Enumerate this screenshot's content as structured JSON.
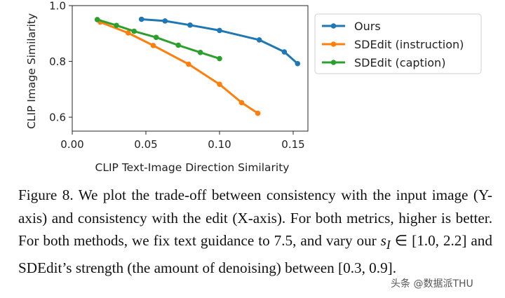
{
  "chart_data": {
    "type": "line",
    "xlabel": "CLIP Text-Image Direction Similarity",
    "ylabel": "CLIP Image Similarity",
    "xlim": [
      0.0,
      0.16
    ],
    "ylim": [
      0.55,
      1.0
    ],
    "xticks": [
      "0.00",
      "0.05",
      "0.10",
      "0.15"
    ],
    "xtick_values": [
      0.0,
      0.05,
      0.1,
      0.15
    ],
    "yticks": [
      "0.6",
      "0.8",
      "1.0"
    ],
    "ytick_values": [
      0.6,
      0.8,
      1.0
    ],
    "grid": false,
    "legend_position": "right",
    "series": [
      {
        "name": "Ours",
        "color": "#1f77b4",
        "x": [
          0.047,
          0.063,
          0.08,
          0.1,
          0.127,
          0.144,
          0.153
        ],
        "y": [
          0.951,
          0.945,
          0.93,
          0.911,
          0.877,
          0.834,
          0.792
        ]
      },
      {
        "name": "SDEdit (instruction)",
        "color": "#ff7f0e",
        "x": [
          0.019,
          0.038,
          0.055,
          0.079,
          0.1,
          0.115,
          0.126
        ],
        "y": [
          0.941,
          0.902,
          0.857,
          0.79,
          0.718,
          0.652,
          0.614
        ]
      },
      {
        "name": "SDEdit (caption)",
        "color": "#2ca02c",
        "x": [
          0.017,
          0.03,
          0.042,
          0.057,
          0.072,
          0.087,
          0.1
        ],
        "y": [
          0.95,
          0.929,
          0.908,
          0.886,
          0.858,
          0.832,
          0.81
        ]
      }
    ]
  },
  "caption": {
    "intro": "Figure 8. We plot the trade-off between consistency with the input image (Y-axis) and consistency with the edit (X-axis). For both metrics, higher is better. For both methods, we fix text guidance to 7.5, and vary our",
    "symbol": "s",
    "subscript": "I",
    "element_of": "∈",
    "range": "[1.0, 2.2]",
    "middle": "and SDEdit’s strength (the amount of denoising) between",
    "range2": "[0.3, 0.9]",
    "end": "."
  },
  "watermark": "头条 @数据派THU"
}
